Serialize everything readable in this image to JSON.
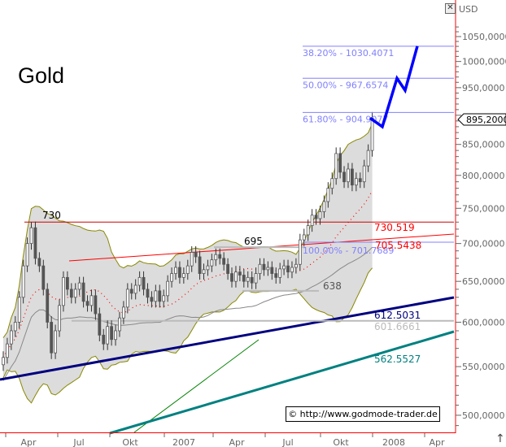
{
  "chart_data": {
    "type": "candlestick",
    "title": "Gold",
    "currency": "USD",
    "y_scale": "log",
    "ylim": [
      480,
      1080
    ],
    "y_ticks": [
      "1050,0000",
      "1000,0000",
      "950,0000",
      "850,0000",
      "800,0000",
      "750,0000",
      "700,0000",
      "650,0000",
      "600,0000",
      "550,0000",
      "500,0000"
    ],
    "y_tick_values": [
      1050,
      1000,
      950,
      850,
      800,
      750,
      700,
      650,
      600,
      550,
      500
    ],
    "x_ticks": [
      "Apr",
      "Jul",
      "Okt",
      "2007",
      "Apr",
      "Jul",
      "Okt",
      "2008",
      "Apr"
    ],
    "weekly_closes": [
      560,
      575,
      590,
      600,
      630,
      670,
      700,
      722,
      680,
      670,
      640,
      600,
      565,
      590,
      620,
      655,
      640,
      630,
      640,
      648,
      625,
      620,
      632,
      610,
      585,
      575,
      595,
      580,
      590,
      605,
      618,
      640,
      635,
      645,
      655,
      640,
      630,
      625,
      638,
      625,
      632,
      650,
      660,
      668,
      655,
      660,
      670,
      688,
      682,
      660,
      665,
      670,
      678,
      685,
      680,
      672,
      660,
      650,
      662,
      658,
      650,
      655,
      648,
      660,
      672,
      665,
      668,
      660,
      655,
      666,
      670,
      662,
      668,
      672,
      705,
      712,
      725,
      740,
      735,
      745,
      760,
      780,
      795,
      835,
      805,
      790,
      810,
      785,
      795,
      790,
      815,
      840,
      895
    ],
    "current_price": "895,2000",
    "annotations": {
      "high_label": "730",
      "resistance_label": "695",
      "support_label": "638",
      "red_line_label": "730.519",
      "red_trend_label": "705.5438",
      "navy_trend_label": "612.5031",
      "gray_line_label": "601.6661",
      "teal_trend_label": "562.5527"
    },
    "fibonacci": [
      {
        "label": "38.20% - 1030.4071",
        "value": 1030.4071
      },
      {
        "label": "50.00% - 967.6574",
        "value": 967.6574
      },
      {
        "label": "61.80% - 904.9077",
        "value": 904.9077
      },
      {
        "label": "100.00% - 701.7689",
        "value": 701.7689
      }
    ],
    "projection": [
      895,
      880,
      967.6574,
      945,
      1030.4071
    ],
    "colors": {
      "up": "#ffffff",
      "down": "#555555",
      "bands": "#888800",
      "fill": "#dcdcdc",
      "fib": "#8080ff",
      "projection": "#0000ff",
      "axis": "#ff0000"
    }
  },
  "watermark": "© http://www.godmode-trader.de"
}
